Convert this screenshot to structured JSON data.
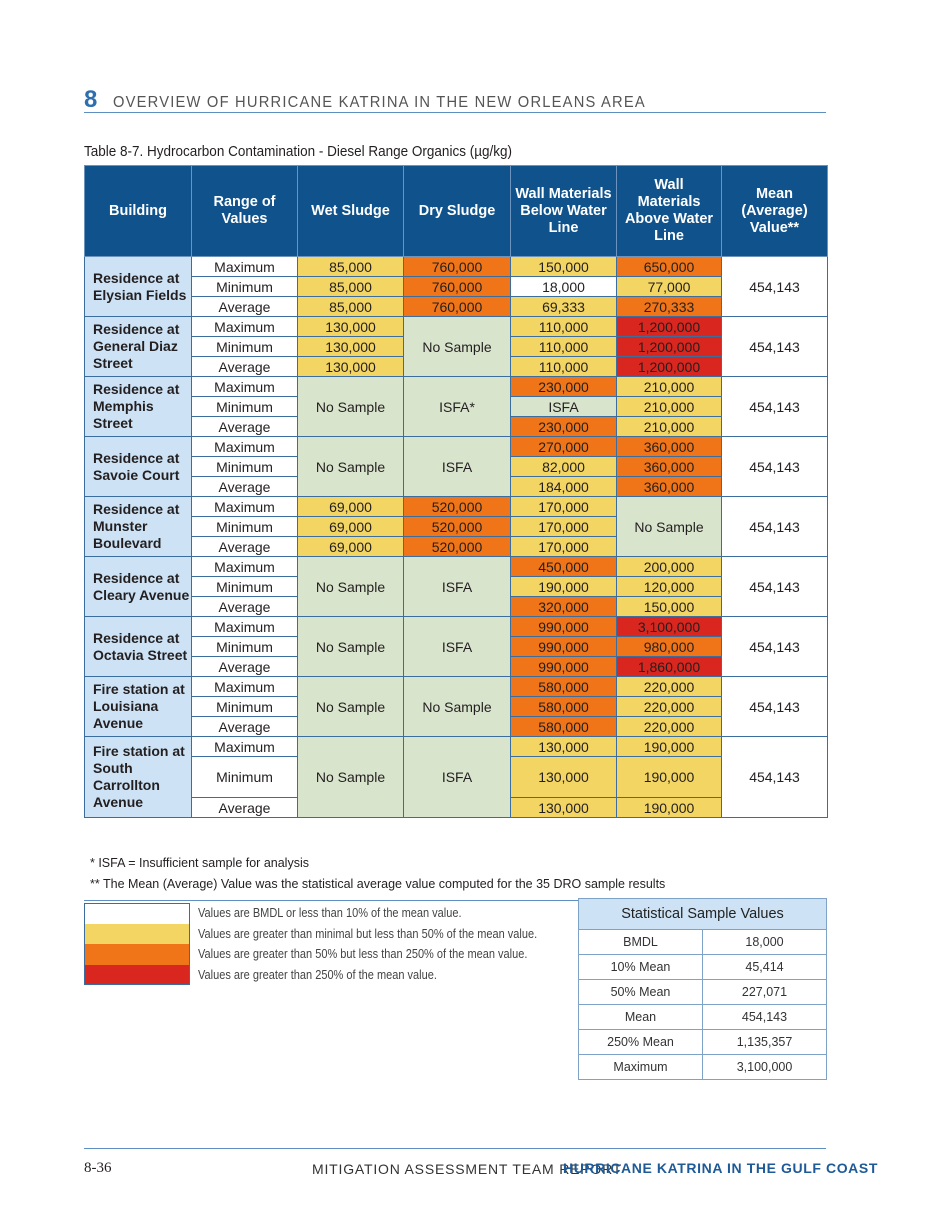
{
  "header": {
    "chapter_number": "8",
    "chapter_title": "OVERVIEW OF HURRICANE KATRINA IN THE NEW ORLEANS AREA"
  },
  "caption": "Table 8-7. Hydrocarbon Contamination - Diesel Range Organics (µg/kg)",
  "table": {
    "columns": [
      "Building",
      "Range of Values",
      "Wet Sludge",
      "Dry Sludge",
      "Wall Materials Below Water Line",
      "Wall Materials Above Water Line",
      "Mean (Average) Value**"
    ],
    "range_labels": [
      "Maximum",
      "Minimum",
      "Average"
    ],
    "colors": {
      "w": "#ffffff",
      "y": "#f3d563",
      "o": "#f07518",
      "r": "#d9261e",
      "g": "#d9e4cd"
    },
    "groups": [
      {
        "building": "Residence at Elysian Fields",
        "wet": [
          [
            "85,000",
            "y"
          ],
          [
            "85,000",
            "y"
          ],
          [
            "85,000",
            "y"
          ]
        ],
        "dry": [
          [
            "760,000",
            "o"
          ],
          [
            "760,000",
            "o"
          ],
          [
            "760,000",
            "o"
          ]
        ],
        "below": [
          [
            "150,000",
            "y"
          ],
          [
            "18,000",
            "w"
          ],
          [
            "69,333",
            "y"
          ]
        ],
        "above": [
          [
            "650,000",
            "o"
          ],
          [
            "77,000",
            "y"
          ],
          [
            "270,333",
            "o"
          ]
        ],
        "mean": "454,143"
      },
      {
        "building": "Residence at General Diaz Street",
        "wet": [
          [
            "130,000",
            "y"
          ],
          [
            "130,000",
            "y"
          ],
          [
            "130,000",
            "y"
          ]
        ],
        "dry": {
          "merged": "No Sample",
          "color": "g"
        },
        "below": [
          [
            "110,000",
            "y"
          ],
          [
            "110,000",
            "y"
          ],
          [
            "110,000",
            "y"
          ]
        ],
        "above": [
          [
            "1,200,000",
            "r"
          ],
          [
            "1,200,000",
            "r"
          ],
          [
            "1,200,000",
            "r"
          ]
        ],
        "mean": "454,143"
      },
      {
        "building": "Residence at Memphis Street",
        "wet": {
          "merged": "No Sample",
          "color": "g"
        },
        "dry": {
          "merged": "ISFA*",
          "color": "g"
        },
        "below": [
          [
            "230,000",
            "o"
          ],
          [
            "ISFA",
            "g"
          ],
          [
            "230,000",
            "o"
          ]
        ],
        "above": [
          [
            "210,000",
            "y"
          ],
          [
            "210,000",
            "y"
          ],
          [
            "210,000",
            "y"
          ]
        ],
        "mean": "454,143"
      },
      {
        "building": "Residence at Savoie Court",
        "wet": {
          "merged": "No Sample",
          "color": "g"
        },
        "dry": {
          "merged": "ISFA",
          "color": "g"
        },
        "below": [
          [
            "270,000",
            "o"
          ],
          [
            "82,000",
            "y"
          ],
          [
            "184,000",
            "y"
          ]
        ],
        "above": [
          [
            "360,000",
            "o"
          ],
          [
            "360,000",
            "o"
          ],
          [
            "360,000",
            "o"
          ]
        ],
        "mean": "454,143"
      },
      {
        "building": "Residence at Munster Boulevard",
        "wet": [
          [
            "69,000",
            "y"
          ],
          [
            "69,000",
            "y"
          ],
          [
            "69,000",
            "y"
          ]
        ],
        "dry": [
          [
            "520,000",
            "o"
          ],
          [
            "520,000",
            "o"
          ],
          [
            "520,000",
            "o"
          ]
        ],
        "below": [
          [
            "170,000",
            "y"
          ],
          [
            "170,000",
            "y"
          ],
          [
            "170,000",
            "y"
          ]
        ],
        "above": {
          "merged": "No Sample",
          "color": "g"
        },
        "mean": "454,143"
      },
      {
        "building": "Residence at Cleary Avenue",
        "wet": {
          "merged": "No Sample",
          "color": "g"
        },
        "dry": {
          "merged": "ISFA",
          "color": "g"
        },
        "below": [
          [
            "450,000",
            "o"
          ],
          [
            "190,000",
            "y"
          ],
          [
            "320,000",
            "o"
          ]
        ],
        "above": [
          [
            "200,000",
            "y"
          ],
          [
            "120,000",
            "y"
          ],
          [
            "150,000",
            "y"
          ]
        ],
        "mean": "454,143"
      },
      {
        "building": "Residence at Octavia Street",
        "wet": {
          "merged": "No Sample",
          "color": "g"
        },
        "dry": {
          "merged": "ISFA",
          "color": "g"
        },
        "below": [
          [
            "990,000",
            "o"
          ],
          [
            "990,000",
            "o"
          ],
          [
            "990,000",
            "o"
          ]
        ],
        "above": [
          [
            "3,100,000",
            "r"
          ],
          [
            "980,000",
            "o"
          ],
          [
            "1,860,000",
            "r"
          ]
        ],
        "mean": "454,143"
      },
      {
        "building": "Fire station at Louisiana Avenue",
        "wet": {
          "merged": "No Sample",
          "color": "g"
        },
        "dry": {
          "merged": "No Sample",
          "color": "g"
        },
        "below": [
          [
            "580,000",
            "o"
          ],
          [
            "580,000",
            "o"
          ],
          [
            "580,000",
            "o"
          ]
        ],
        "above": [
          [
            "220,000",
            "y"
          ],
          [
            "220,000",
            "y"
          ],
          [
            "220,000",
            "y"
          ]
        ],
        "mean": "454,143"
      },
      {
        "building": "Fire station at South Carrollton Avenue",
        "wet": {
          "merged": "No Sample",
          "color": "g"
        },
        "dry": {
          "merged": "ISFA",
          "color": "g"
        },
        "below": [
          [
            "130,000",
            "y"
          ],
          [
            "130,000",
            "y"
          ],
          [
            "130,000",
            "y"
          ]
        ],
        "above": [
          [
            "190,000",
            "y"
          ],
          [
            "190,000",
            "y"
          ],
          [
            "190,000",
            "y"
          ]
        ],
        "mean": "454,143"
      }
    ]
  },
  "footnotes": [
    "* ISFA = Insufficient sample for analysis",
    "** The Mean (Average) Value was the statistical average value computed for the 35 DRO sample results"
  ],
  "legend": [
    {
      "color": "#ffffff",
      "text": "Values are BMDL or less than 10% of the mean value."
    },
    {
      "color": "#f3d563",
      "text": "Values are greater than minimal but less than 50% of the  mean value."
    },
    {
      "color": "#f07518",
      "text": "Values are greater than 50% but less than 250% of the mean value."
    },
    {
      "color": "#d9261e",
      "text": "Values are greater than 250% of the mean value."
    }
  ],
  "stats": {
    "title": "Statistical Sample Values",
    "rows": [
      [
        "BMDL",
        "18,000"
      ],
      [
        "10% Mean",
        "45,414"
      ],
      [
        "50% Mean",
        "227,071"
      ],
      [
        "Mean",
        "454,143"
      ],
      [
        "250% Mean",
        "1,135,357"
      ],
      [
        "Maximum",
        "3,100,000"
      ]
    ]
  },
  "footer": {
    "page": "8-36",
    "report": "MITIGATION ASSESSMENT TEAM REPORT",
    "title": "HURRICANE KATRINA IN THE GULF COAST"
  }
}
